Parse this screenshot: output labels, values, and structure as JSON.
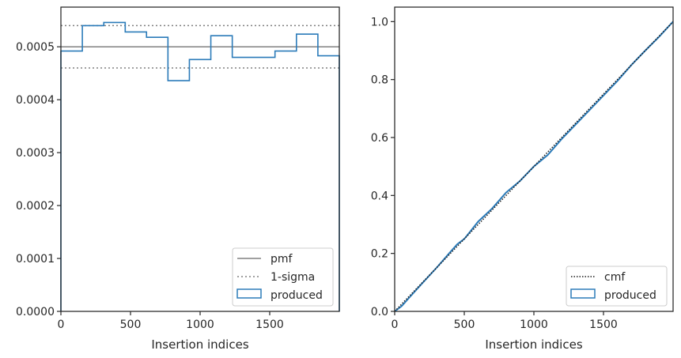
{
  "chart_data": [
    {
      "type": "histogram",
      "xlabel": "Insertion indices",
      "ylabel": "",
      "xlim": [
        0,
        2000
      ],
      "ylim": [
        0,
        0.000575
      ],
      "x_ticks": [
        0,
        500,
        1000,
        1500
      ],
      "y_ticks": [
        0.0,
        0.0001,
        0.0002,
        0.0003,
        0.0004,
        0.0005
      ],
      "y_tick_labels": [
        "0.0000",
        "0.0001",
        "0.0002",
        "0.0003",
        "0.0004",
        "0.0005"
      ],
      "grid": false,
      "legend_position": "bottom-right",
      "pmf": 0.0005,
      "sigma_band": [
        0.00046,
        0.00054
      ],
      "bin_edges": [
        0,
        154,
        308,
        462,
        615,
        769,
        923,
        1077,
        1231,
        1385,
        1538,
        1692,
        1846,
        2000
      ],
      "bin_values": [
        0.000492,
        0.00054,
        0.000546,
        0.000528,
        0.000518,
        0.000436,
        0.000476,
        0.000521,
        0.00048,
        0.00048,
        0.000492,
        0.000524,
        0.000483
      ],
      "colors": {
        "pmf": "#808080",
        "sigma": "#808080",
        "produced": "#2b7bb9"
      },
      "legend": [
        {
          "label": "pmf",
          "style": "solid-gray"
        },
        {
          "label": "1-sigma",
          "style": "dotted-gray"
        },
        {
          "label": "produced",
          "style": "blue-box"
        }
      ]
    },
    {
      "type": "line",
      "xlabel": "Insertion indices",
      "ylabel": "",
      "xlim": [
        0,
        2000
      ],
      "ylim": [
        0,
        1.05
      ],
      "x_ticks": [
        0,
        500,
        1000,
        1500
      ],
      "y_ticks": [
        0.0,
        0.2,
        0.4,
        0.6,
        0.8,
        1.0
      ],
      "y_tick_labels": [
        "0.0",
        "0.2",
        "0.4",
        "0.6",
        "0.8",
        "1.0"
      ],
      "grid": false,
      "legend_position": "bottom-right",
      "cmf_x": [
        0,
        2000
      ],
      "cmf_y": [
        0,
        1.0
      ],
      "produced_x": [
        0,
        50,
        100,
        200,
        300,
        400,
        450,
        500,
        550,
        600,
        700,
        800,
        900,
        950,
        1000,
        1100,
        1200,
        1300,
        1400,
        1500,
        1600,
        1700,
        1800,
        1900,
        2000
      ],
      "produced_y": [
        0,
        0.018,
        0.045,
        0.098,
        0.15,
        0.205,
        0.232,
        0.25,
        0.28,
        0.31,
        0.355,
        0.41,
        0.45,
        0.475,
        0.5,
        0.54,
        0.595,
        0.645,
        0.695,
        0.745,
        0.795,
        0.85,
        0.9,
        0.948,
        1.0
      ],
      "colors": {
        "cmf": "#1a1a1a",
        "produced": "#2b7bb9"
      },
      "legend": [
        {
          "label": "cmf",
          "style": "dotted-black"
        },
        {
          "label": "produced",
          "style": "blue-box"
        }
      ]
    }
  ]
}
